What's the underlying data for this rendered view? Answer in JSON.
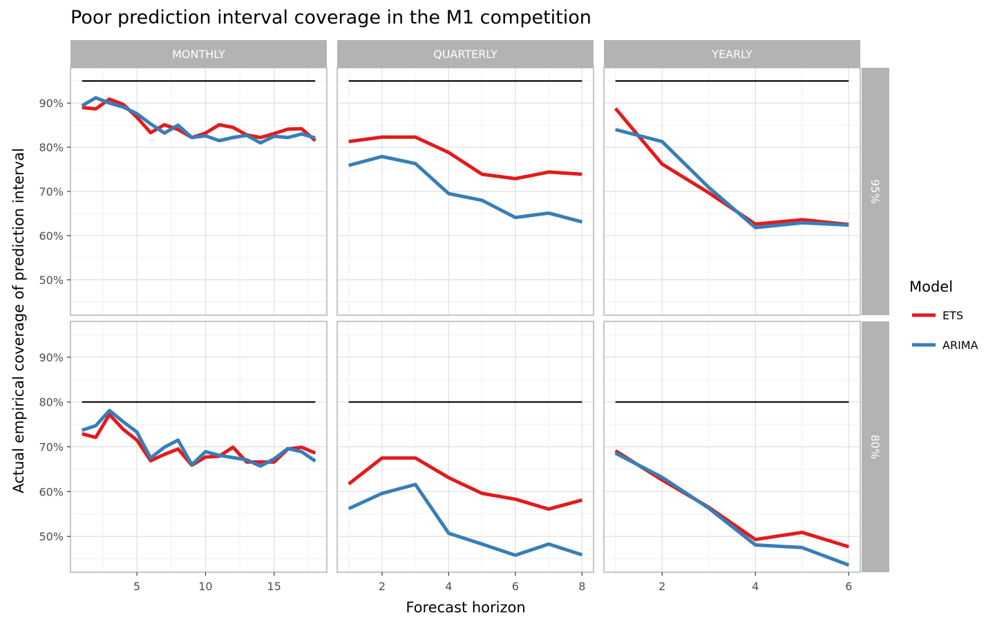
{
  "chart_data": {
    "type": "line",
    "title": "Poor prediction interval coverage in the M1 competition",
    "xlabel": "Forecast horizon",
    "ylabel": "Actual empirical coverage of prediction interval",
    "ylim": [
      0.42,
      0.98
    ],
    "y_ticks": [
      0.5,
      0.6,
      0.7,
      0.8,
      0.9
    ],
    "y_tick_labels": [
      "50%",
      "60%",
      "70%",
      "80%",
      "90%"
    ],
    "grid": true,
    "legend": {
      "title": "Model",
      "position": "right"
    },
    "colors": {
      "ETS": "#e41a1c",
      "ARIMA": "#377eb8",
      "target": "#000000",
      "strip": "#b3b3b3",
      "grid": "#ebebeb",
      "border": "#b3b3b3"
    },
    "column_facets": [
      {
        "label": "MONTHLY",
        "xlim": [
          1,
          18
        ],
        "x_ticks": [
          5,
          10,
          15
        ]
      },
      {
        "label": "QUARTERLY",
        "xlim": [
          1,
          8
        ],
        "x_ticks": [
          2,
          4,
          6,
          8
        ]
      },
      {
        "label": "YEARLY",
        "xlim": [
          1,
          6
        ],
        "x_ticks": [
          2,
          4,
          6
        ]
      }
    ],
    "row_facets": [
      {
        "label": "95%",
        "target": 0.95
      },
      {
        "label": "80%",
        "target": 0.8
      }
    ],
    "panels": [
      {
        "col": "MONTHLY",
        "row": "95%",
        "x": [
          1,
          2,
          3,
          4,
          5,
          6,
          7,
          8,
          9,
          10,
          11,
          12,
          13,
          14,
          15,
          16,
          17,
          18
        ],
        "series": [
          {
            "name": "ETS",
            "values": [
              0.89,
              0.887,
              0.909,
              0.897,
              0.868,
              0.833,
              0.851,
              0.84,
              0.822,
              0.832,
              0.851,
              0.845,
              0.828,
              0.822,
              0.831,
              0.841,
              0.842,
              0.815
            ]
          },
          {
            "name": "ARIMA",
            "values": [
              0.894,
              0.912,
              0.9,
              0.891,
              0.876,
              0.853,
              0.832,
              0.85,
              0.822,
              0.826,
              0.815,
              0.822,
              0.827,
              0.81,
              0.825,
              0.822,
              0.83,
              0.821
            ]
          }
        ]
      },
      {
        "col": "QUARTERLY",
        "row": "95%",
        "x": [
          1,
          2,
          3,
          4,
          5,
          6,
          7,
          8
        ],
        "series": [
          {
            "name": "ETS",
            "values": [
              0.813,
              0.823,
              0.823,
              0.788,
              0.739,
              0.729,
              0.744,
              0.739
            ]
          },
          {
            "name": "ARIMA",
            "values": [
              0.759,
              0.779,
              0.763,
              0.695,
              0.68,
              0.641,
              0.651,
              0.631
            ]
          }
        ]
      },
      {
        "col": "YEARLY",
        "row": "95%",
        "x": [
          1,
          2,
          3,
          4,
          5,
          6
        ],
        "series": [
          {
            "name": "ETS",
            "values": [
              0.888,
              0.762,
              0.697,
              0.626,
              0.636,
              0.625
            ]
          },
          {
            "name": "ARIMA",
            "values": [
              0.84,
              0.813,
              0.709,
              0.618,
              0.629,
              0.624
            ]
          }
        ]
      },
      {
        "col": "MONTHLY",
        "row": "80%",
        "x": [
          1,
          2,
          3,
          4,
          5,
          6,
          7,
          8,
          9,
          10,
          11,
          12,
          13,
          14,
          15,
          16,
          17,
          18
        ],
        "series": [
          {
            "name": "ETS",
            "values": [
              0.729,
              0.721,
              0.772,
              0.739,
              0.715,
              0.669,
              0.683,
              0.695,
              0.659,
              0.677,
              0.679,
              0.699,
              0.666,
              0.666,
              0.666,
              0.695,
              0.699,
              0.686
            ]
          },
          {
            "name": "ARIMA",
            "values": [
              0.737,
              0.747,
              0.781,
              0.756,
              0.733,
              0.675,
              0.699,
              0.715,
              0.66,
              0.689,
              0.681,
              0.676,
              0.671,
              0.657,
              0.673,
              0.696,
              0.689,
              0.668
            ]
          }
        ]
      },
      {
        "col": "QUARTERLY",
        "row": "80%",
        "x": [
          1,
          2,
          3,
          4,
          5,
          6,
          7,
          8
        ],
        "series": [
          {
            "name": "ETS",
            "values": [
              0.617,
              0.675,
              0.675,
              0.631,
              0.596,
              0.583,
              0.561,
              0.581
            ]
          },
          {
            "name": "ARIMA",
            "values": [
              0.562,
              0.596,
              0.616,
              0.507,
              0.483,
              0.458,
              0.483,
              0.459
            ]
          }
        ]
      },
      {
        "col": "YEARLY",
        "row": "80%",
        "x": [
          1,
          2,
          3,
          4,
          5,
          6
        ],
        "series": [
          {
            "name": "ETS",
            "values": [
              0.691,
              0.626,
              0.565,
              0.493,
              0.509,
              0.477
            ]
          },
          {
            "name": "ARIMA",
            "values": [
              0.686,
              0.632,
              0.563,
              0.481,
              0.475,
              0.436
            ]
          }
        ]
      }
    ]
  }
}
